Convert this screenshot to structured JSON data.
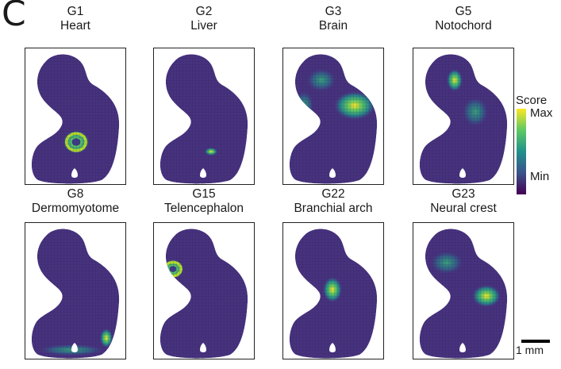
{
  "panel": {
    "letter": "C"
  },
  "tiles": [
    {
      "id": "G1",
      "label": "Heart",
      "hotspots": [
        {
          "cx": 64,
          "cy": 118,
          "rx": 17,
          "ry": 15,
          "kind": "ring"
        }
      ]
    },
    {
      "id": "G2",
      "label": "Liver",
      "hotspots": [
        {
          "cx": 72,
          "cy": 130,
          "rx": 8,
          "ry": 5,
          "kind": "spot"
        }
      ]
    },
    {
      "id": "G3",
      "label": "Brain",
      "hotspots": [
        {
          "cx": 90,
          "cy": 72,
          "rx": 26,
          "ry": 18,
          "kind": "spot"
        },
        {
          "cx": 48,
          "cy": 40,
          "rx": 18,
          "ry": 14,
          "kind": "halo"
        },
        {
          "cx": 26,
          "cy": 72,
          "rx": 12,
          "ry": 18,
          "kind": "halo"
        }
      ]
    },
    {
      "id": "G5",
      "label": "Notochord",
      "hotspots": [
        {
          "cx": 52,
          "cy": 40,
          "rx": 10,
          "ry": 14,
          "kind": "spot"
        },
        {
          "cx": 78,
          "cy": 80,
          "rx": 16,
          "ry": 18,
          "kind": "halo"
        }
      ]
    },
    {
      "id": "G8",
      "label": "Dermomyotome",
      "hotspots": [
        {
          "cx": 58,
          "cy": 160,
          "rx": 40,
          "ry": 7,
          "kind": "band"
        },
        {
          "cx": 102,
          "cy": 145,
          "rx": 8,
          "ry": 12,
          "kind": "spot"
        }
      ]
    },
    {
      "id": "G15",
      "label": "Telencephalon",
      "hotspots": [
        {
          "cx": 24,
          "cy": 58,
          "rx": 14,
          "ry": 12,
          "kind": "ring"
        }
      ]
    },
    {
      "id": "G22",
      "label": "Branchial arch",
      "hotspots": [
        {
          "cx": 62,
          "cy": 84,
          "rx": 12,
          "ry": 16,
          "kind": "spot"
        }
      ]
    },
    {
      "id": "G23",
      "label": "Neural crest",
      "hotspots": [
        {
          "cx": 92,
          "cy": 92,
          "rx": 18,
          "ry": 14,
          "kind": "spot"
        },
        {
          "cx": 42,
          "cy": 50,
          "rx": 20,
          "ry": 14,
          "kind": "halo"
        }
      ]
    }
  ],
  "legend": {
    "title": "Score",
    "max_label": "Max",
    "min_label": "Min",
    "colormap": [
      "#440154",
      "#3b528b",
      "#21918c",
      "#5ec962",
      "#fde725"
    ]
  },
  "scale_bar": {
    "label": "1 mm"
  }
}
